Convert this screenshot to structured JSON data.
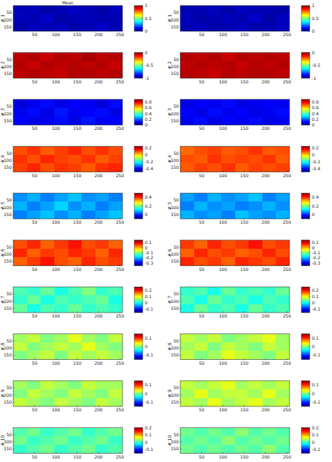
{
  "chart_data": [
    {
      "type": "heatmap",
      "title": "Mean",
      "y_label": "# 1",
      "xlim": [
        0,
        256
      ],
      "ylim": [
        0,
        180
      ],
      "xticks": [
        50,
        100,
        150,
        200,
        250
      ],
      "yticks": [
        50,
        100,
        150
      ],
      "color_range": [
        0,
        1
      ],
      "color_ticks": [
        0,
        0.5,
        1
      ],
      "cells": [
        [
          0.05,
          0.06,
          0.04,
          0.05,
          0.07,
          0.05,
          0.04,
          0.06
        ],
        [
          0.06,
          0.05,
          0.07,
          0.04,
          0.05,
          0.06,
          0.05,
          0.05
        ],
        [
          0.04,
          0.06,
          0.05,
          0.06,
          0.04,
          0.05,
          0.07,
          0.05
        ]
      ]
    },
    {
      "type": "heatmap",
      "y_label": "# 1",
      "xlim": [
        0,
        256
      ],
      "ylim": [
        0,
        180
      ],
      "xticks": [
        50,
        100,
        150,
        200,
        250
      ],
      "yticks": [
        50,
        100,
        150
      ],
      "color_range": [
        0,
        1
      ],
      "color_ticks": [
        0,
        0.5,
        1
      ],
      "cells": [
        [
          0.05,
          0.05,
          0.06,
          0.04,
          0.06,
          0.05,
          0.05,
          0.04
        ],
        [
          0.06,
          0.04,
          0.05,
          0.06,
          0.05,
          0.07,
          0.04,
          0.06
        ],
        [
          0.05,
          0.06,
          0.04,
          0.05,
          0.06,
          0.04,
          0.05,
          0.06
        ]
      ]
    },
    {
      "type": "heatmap",
      "y_label": "# 2",
      "xlim": [
        0,
        256
      ],
      "ylim": [
        0,
        180
      ],
      "xticks": [
        50,
        100,
        150,
        200,
        250
      ],
      "yticks": [
        50,
        100,
        150
      ],
      "color_range": [
        -1,
        0
      ],
      "color_ticks": [
        -1,
        -0.5,
        0
      ],
      "cells": [
        [
          -0.06,
          -0.05,
          -0.07,
          -0.05,
          -0.06,
          -0.04,
          -0.06,
          -0.05
        ],
        [
          -0.05,
          -0.07,
          -0.05,
          -0.06,
          -0.05,
          -0.06,
          -0.05,
          -0.07
        ],
        [
          -0.06,
          -0.05,
          -0.06,
          -0.07,
          -0.05,
          -0.05,
          -0.06,
          -0.05
        ]
      ]
    },
    {
      "type": "heatmap",
      "y_label": "# 2",
      "xlim": [
        0,
        256
      ],
      "ylim": [
        0,
        180
      ],
      "xticks": [
        50,
        100,
        150,
        200,
        250
      ],
      "yticks": [
        50,
        100,
        150
      ],
      "color_range": [
        -1,
        0
      ],
      "color_ticks": [
        -1,
        -0.5,
        0
      ],
      "cells": [
        [
          -0.05,
          -0.06,
          -0.05,
          -0.07,
          -0.05,
          -0.06,
          -0.05,
          -0.06
        ],
        [
          -0.06,
          -0.05,
          -0.06,
          -0.05,
          -0.07,
          -0.05,
          -0.06,
          -0.05
        ],
        [
          -0.05,
          -0.06,
          -0.07,
          -0.05,
          -0.06,
          -0.05,
          -0.05,
          -0.06
        ]
      ]
    },
    {
      "type": "heatmap",
      "y_label": "# 3",
      "xlim": [
        0,
        256
      ],
      "ylim": [
        0,
        180
      ],
      "xticks": [
        50,
        100,
        150,
        200,
        250
      ],
      "yticks": [
        50,
        100,
        150
      ],
      "color_range": [
        0,
        0.9
      ],
      "color_ticks": [
        0,
        0.2,
        0.4,
        0.6,
        0.8
      ],
      "cells": [
        [
          0.08,
          0.1,
          0.12,
          0.09,
          0.11,
          0.1,
          0.08,
          0.12
        ],
        [
          0.1,
          0.12,
          0.09,
          0.13,
          0.1,
          0.11,
          0.12,
          0.09
        ],
        [
          0.11,
          0.09,
          0.1,
          0.12,
          0.09,
          0.13,
          0.1,
          0.11
        ]
      ]
    },
    {
      "type": "heatmap",
      "y_label": "# 3",
      "xlim": [
        0,
        256
      ],
      "ylim": [
        0,
        180
      ],
      "xticks": [
        50,
        100,
        150,
        200,
        250
      ],
      "yticks": [
        50,
        100,
        150
      ],
      "color_range": [
        0,
        0.9
      ],
      "color_ticks": [
        0,
        0.2,
        0.4,
        0.6,
        0.8
      ],
      "cells": [
        [
          0.09,
          0.11,
          0.1,
          0.12,
          0.09,
          0.1,
          0.11,
          0.1
        ],
        [
          0.11,
          0.09,
          0.12,
          0.1,
          0.11,
          0.09,
          0.1,
          0.12
        ],
        [
          0.1,
          0.12,
          0.09,
          0.11,
          0.1,
          0.12,
          0.09,
          0.1
        ]
      ]
    },
    {
      "type": "heatmap",
      "y_label": "# 4",
      "xlim": [
        0,
        256
      ],
      "ylim": [
        0,
        180
      ],
      "xticks": [
        50,
        100,
        150,
        200,
        250
      ],
      "yticks": [
        50,
        100,
        150
      ],
      "color_range": [
        -0.5,
        0.25
      ],
      "color_ticks": [
        -0.4,
        -0.2,
        0,
        0.2
      ],
      "cells": [
        [
          0.1,
          0.12,
          0.09,
          0.11,
          0.13,
          0.1,
          0.12,
          0.1
        ],
        [
          0.12,
          0.1,
          0.13,
          0.11,
          0.1,
          0.12,
          0.09,
          0.11
        ],
        [
          0.11,
          0.13,
          0.1,
          0.12,
          0.11,
          0.09,
          0.12,
          0.13
        ]
      ]
    },
    {
      "type": "heatmap",
      "y_label": "# 4",
      "xlim": [
        0,
        256
      ],
      "ylim": [
        0,
        180
      ],
      "xticks": [
        50,
        100,
        150,
        200,
        250
      ],
      "yticks": [
        50,
        100,
        150
      ],
      "color_range": [
        -0.5,
        0.25
      ],
      "color_ticks": [
        -0.4,
        -0.2,
        0,
        0.2
      ],
      "cells": [
        [
          0.08,
          0.1,
          0.11,
          0.09,
          0.1,
          0.12,
          0.09,
          0.1
        ],
        [
          0.1,
          0.09,
          0.12,
          0.1,
          0.11,
          0.1,
          0.12,
          0.09
        ],
        [
          0.09,
          0.11,
          0.1,
          0.12,
          0.09,
          0.11,
          0.1,
          0.11
        ]
      ]
    },
    {
      "type": "heatmap",
      "y_label": "# 5",
      "xlim": [
        0,
        256
      ],
      "ylim": [
        0,
        180
      ],
      "xticks": [
        50,
        100,
        150,
        200,
        250
      ],
      "yticks": [
        50,
        100,
        150
      ],
      "color_range": [
        -0.1,
        0.5
      ],
      "color_ticks": [
        0,
        0.2,
        0.4
      ],
      "cells": [
        [
          0.06,
          0.08,
          0.05,
          0.07,
          0.09,
          0.06,
          0.07,
          0.05
        ],
        [
          0.08,
          0.05,
          0.07,
          0.1,
          0.06,
          0.08,
          0.05,
          0.07
        ],
        [
          0.05,
          0.07,
          0.09,
          0.06,
          0.08,
          0.05,
          0.07,
          0.09
        ]
      ]
    },
    {
      "type": "heatmap",
      "y_label": "# 5",
      "xlim": [
        0,
        256
      ],
      "ylim": [
        0,
        180
      ],
      "xticks": [
        50,
        100,
        150,
        200,
        250
      ],
      "yticks": [
        50,
        100,
        150
      ],
      "color_range": [
        -0.1,
        0.5
      ],
      "color_ticks": [
        0,
        0.2,
        0.4
      ],
      "cells": [
        [
          0.07,
          0.05,
          0.08,
          0.06,
          0.07,
          0.09,
          0.05,
          0.07
        ],
        [
          0.05,
          0.08,
          0.06,
          0.07,
          0.05,
          0.06,
          0.08,
          0.06
        ],
        [
          0.08,
          0.06,
          0.07,
          0.05,
          0.09,
          0.07,
          0.06,
          0.08
        ]
      ]
    },
    {
      "type": "heatmap",
      "y_label": "# 6",
      "xlim": [
        0,
        256
      ],
      "ylim": [
        0,
        180
      ],
      "xticks": [
        50,
        100,
        150,
        200,
        250
      ],
      "yticks": [
        50,
        100,
        150
      ],
      "color_range": [
        -0.35,
        0.15
      ],
      "color_ticks": [
        -0.3,
        -0.2,
        -0.1,
        0,
        0.1
      ],
      "cells": [
        [
          0.05,
          0.07,
          0.04,
          0.06,
          0.08,
          0.05,
          0.06,
          0.04
        ],
        [
          0.07,
          0.04,
          0.06,
          0.05,
          0.07,
          0.06,
          0.04,
          0.07
        ],
        [
          0.04,
          0.06,
          0.08,
          0.05,
          0.04,
          0.07,
          0.05,
          0.06
        ]
      ]
    },
    {
      "type": "heatmap",
      "y_label": "# 6",
      "xlim": [
        0,
        256
      ],
      "ylim": [
        0,
        180
      ],
      "xticks": [
        50,
        100,
        150,
        200,
        250
      ],
      "yticks": [
        50,
        100,
        150
      ],
      "color_range": [
        -0.35,
        0.15
      ],
      "color_ticks": [
        -0.3,
        -0.2,
        -0.1,
        0,
        0.1
      ],
      "cells": [
        [
          0.06,
          0.04,
          0.07,
          0.05,
          0.06,
          0.08,
          0.05,
          0.06
        ],
        [
          0.04,
          0.07,
          0.05,
          0.06,
          0.04,
          0.05,
          0.07,
          0.05
        ],
        [
          0.07,
          0.05,
          0.06,
          0.04,
          0.07,
          0.06,
          0.05,
          0.07
        ]
      ]
    },
    {
      "type": "heatmap",
      "y_label": "# 7",
      "xlim": [
        0,
        256
      ],
      "ylim": [
        0,
        180
      ],
      "xticks": [
        50,
        100,
        150,
        200,
        250
      ],
      "yticks": [
        50,
        100,
        150
      ],
      "color_range": [
        -0.15,
        0.25
      ],
      "color_ticks": [
        -0.1,
        0,
        0.1,
        0.2
      ],
      "cells": [
        [
          0.03,
          0.02,
          0.04,
          0.01,
          0.03,
          0.05,
          0.02,
          0.03
        ],
        [
          0.02,
          0.04,
          0.01,
          0.03,
          0.02,
          0.03,
          0.04,
          0.01
        ],
        [
          0.04,
          0.01,
          0.03,
          0.02,
          0.04,
          0.02,
          0.03,
          0.02
        ]
      ]
    },
    {
      "type": "heatmap",
      "y_label": "# 7",
      "xlim": [
        0,
        256
      ],
      "ylim": [
        0,
        180
      ],
      "xticks": [
        50,
        100,
        150,
        200,
        250
      ],
      "yticks": [
        50,
        100,
        150
      ],
      "color_range": [
        -0.15,
        0.25
      ],
      "color_ticks": [
        -0.1,
        0,
        0.1,
        0.2
      ],
      "cells": [
        [
          0.02,
          0.03,
          0.01,
          0.04,
          0.02,
          0.03,
          0.02,
          0.04
        ],
        [
          0.03,
          0.01,
          0.04,
          0.02,
          0.03,
          0.01,
          0.03,
          0.02
        ],
        [
          0.01,
          0.04,
          0.02,
          0.03,
          0.01,
          0.04,
          0.02,
          0.03
        ]
      ]
    },
    {
      "type": "heatmap",
      "y_label": "# 8",
      "xlim": [
        0,
        256
      ],
      "ylim": [
        0,
        180
      ],
      "xticks": [
        50,
        100,
        150,
        200,
        250
      ],
      "yticks": [
        50,
        100,
        150
      ],
      "color_range": [
        -0.15,
        0.15
      ],
      "color_ticks": [
        -0.1,
        0,
        0.1
      ],
      "cells": [
        [
          0.01,
          0.02,
          0,
          0.01,
          0.03,
          0.01,
          0,
          0.02
        ],
        [
          0.02,
          0,
          0.01,
          0.02,
          0.01,
          0.03,
          0.01,
          0
        ],
        [
          0,
          0.01,
          0.02,
          0,
          0.02,
          0.01,
          0.02,
          0.01
        ]
      ]
    },
    {
      "type": "heatmap",
      "y_label": "# 8",
      "xlim": [
        0,
        256
      ],
      "ylim": [
        0,
        180
      ],
      "xticks": [
        50,
        100,
        150,
        200,
        250
      ],
      "yticks": [
        50,
        100,
        150
      ],
      "color_range": [
        -0.15,
        0.15
      ],
      "color_ticks": [
        -0.1,
        0,
        0.1
      ],
      "cells": [
        [
          0.02,
          0.01,
          0.02,
          0,
          0.01,
          0.02,
          0.03,
          0.01
        ],
        [
          0.01,
          0.02,
          0,
          0.02,
          0.01,
          0,
          0.02,
          0.01
        ],
        [
          0.02,
          0,
          0.01,
          0.03,
          0.02,
          0.01,
          0,
          0.02
        ]
      ]
    },
    {
      "type": "heatmap",
      "y_label": "# 9",
      "xlim": [
        0,
        256
      ],
      "ylim": [
        0,
        180
      ],
      "xticks": [
        50,
        100,
        150,
        200,
        250
      ],
      "yticks": [
        50,
        100,
        150
      ],
      "color_range": [
        -0.15,
        0.15
      ],
      "color_ticks": [
        -0.1,
        0,
        0.1
      ],
      "cells": [
        [
          0.01,
          0,
          0.02,
          0.01,
          0,
          0.02,
          0.01,
          0.01
        ],
        [
          0,
          0.02,
          0.01,
          0,
          0.02,
          0.01,
          0,
          0.02
        ],
        [
          0.02,
          0.01,
          0,
          0.02,
          0.01,
          0,
          0.02,
          0.01
        ]
      ]
    },
    {
      "type": "heatmap",
      "y_label": "# 9",
      "xlim": [
        0,
        256
      ],
      "ylim": [
        0,
        180
      ],
      "xticks": [
        50,
        100,
        150,
        200,
        250
      ],
      "yticks": [
        50,
        100,
        150
      ],
      "color_range": [
        -0.15,
        0.15
      ],
      "color_ticks": [
        -0.1,
        0,
        0.1
      ],
      "cells": [
        [
          0.02,
          0.01,
          0.02,
          0.03,
          0.01,
          0.02,
          0.01,
          0.02
        ],
        [
          0.01,
          0.03,
          0.01,
          0.02,
          0.02,
          0.01,
          0.03,
          0.01
        ],
        [
          0.02,
          0.01,
          0.03,
          0.01,
          0.02,
          0.03,
          0.01,
          0.02
        ]
      ]
    },
    {
      "type": "heatmap",
      "y_label": "# 10",
      "xlim": [
        0,
        256
      ],
      "ylim": [
        0,
        180
      ],
      "xticks": [
        50,
        100,
        150,
        200,
        250
      ],
      "yticks": [
        50,
        100,
        150
      ],
      "color_range": [
        -0.15,
        0.2
      ],
      "color_ticks": [
        -0.1,
        0,
        0.1,
        0.2
      ],
      "cells": [
        [
          0.01,
          0.02,
          0,
          0.01,
          0.02,
          0,
          0.01,
          0.02
        ],
        [
          0.02,
          0,
          0.01,
          0.02,
          0,
          0.01,
          0.02,
          0
        ],
        [
          0,
          0.01,
          0.02,
          0,
          0.01,
          0.02,
          0,
          0.01
        ]
      ]
    },
    {
      "type": "heatmap",
      "y_label": "# 10",
      "xlim": [
        0,
        256
      ],
      "ylim": [
        0,
        180
      ],
      "xticks": [
        50,
        100,
        150,
        200,
        250
      ],
      "yticks": [
        50,
        100,
        150
      ],
      "color_range": [
        -0.15,
        0.2
      ],
      "color_ticks": [
        -0.1,
        0,
        0.1,
        0.2
      ],
      "cells": [
        [
          0.02,
          0.01,
          0.02,
          0.01,
          0.03,
          0.01,
          0.02,
          0.01
        ],
        [
          0.01,
          0.02,
          0.01,
          0.03,
          0.01,
          0.02,
          0.01,
          0.02
        ],
        [
          0.02,
          0.01,
          0.02,
          0.01,
          0.02,
          0.01,
          0.03,
          0.01
        ]
      ]
    }
  ]
}
